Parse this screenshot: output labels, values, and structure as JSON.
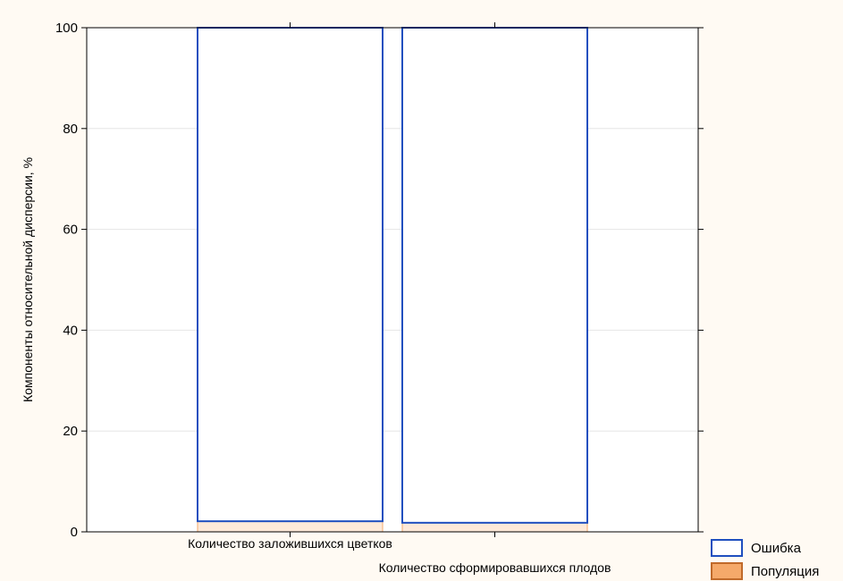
{
  "chart_data": {
    "type": "bar",
    "stacked": true,
    "categories": [
      "Количество заложившихся цветков",
      "Количество сформировавшихся плодов"
    ],
    "series": [
      {
        "name": "Популяция",
        "values": [
          2.1,
          1.8
        ],
        "color": "#f5a96a"
      },
      {
        "name": "Ошибка",
        "values": [
          97.9,
          98.2
        ],
        "color": "#1f4fbf"
      }
    ],
    "ylabel": "Компоненты относительной дисперсии, %",
    "xlabel": "",
    "ylim": [
      0,
      100
    ],
    "yticks": [
      0,
      20,
      40,
      60,
      80,
      100
    ],
    "grid": true,
    "legend_position": "bottom-right"
  }
}
